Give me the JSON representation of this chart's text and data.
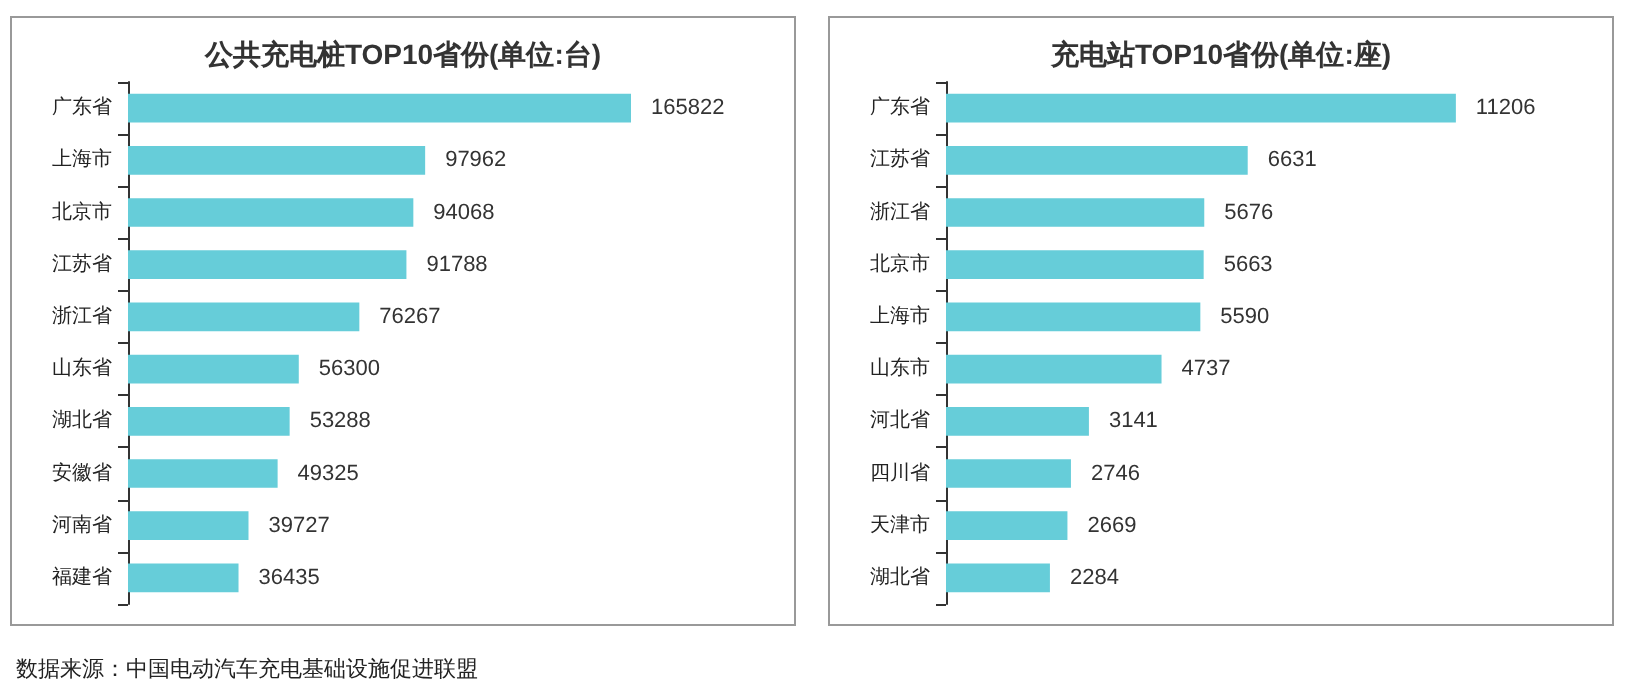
{
  "chart_data": [
    {
      "type": "bar",
      "orientation": "horizontal",
      "title": "公共充电桩TOP10省份(单位:台)",
      "categories": [
        "广东省",
        "上海市",
        "北京市",
        "江苏省",
        "浙江省",
        "山东省",
        "湖北省",
        "安徽省",
        "河南省",
        "福建省"
      ],
      "series": [
        {
          "color": "#66cdd9",
          "values": [
            165822,
            97962,
            94068,
            91788,
            76267,
            56300,
            53288,
            49325,
            39727,
            36435
          ]
        }
      ],
      "data_labels": true,
      "annotations": [
        "数据来源：中国电动汽车充电基础设施促进联盟"
      ]
    },
    {
      "type": "bar",
      "orientation": "horizontal",
      "title": "充电站TOP10省份(单位:座)",
      "categories": [
        "广东省",
        "江苏省",
        "浙江省",
        "北京市",
        "上海市",
        "山东市",
        "河北省",
        "四川省",
        "天津市",
        "湖北省"
      ],
      "series": [
        {
          "color": "#66cdd9",
          "values": [
            11206,
            6631,
            5676,
            5663,
            5590,
            4737,
            3141,
            2746,
            2669,
            2284
          ]
        }
      ],
      "data_labels": true
    }
  ]
}
